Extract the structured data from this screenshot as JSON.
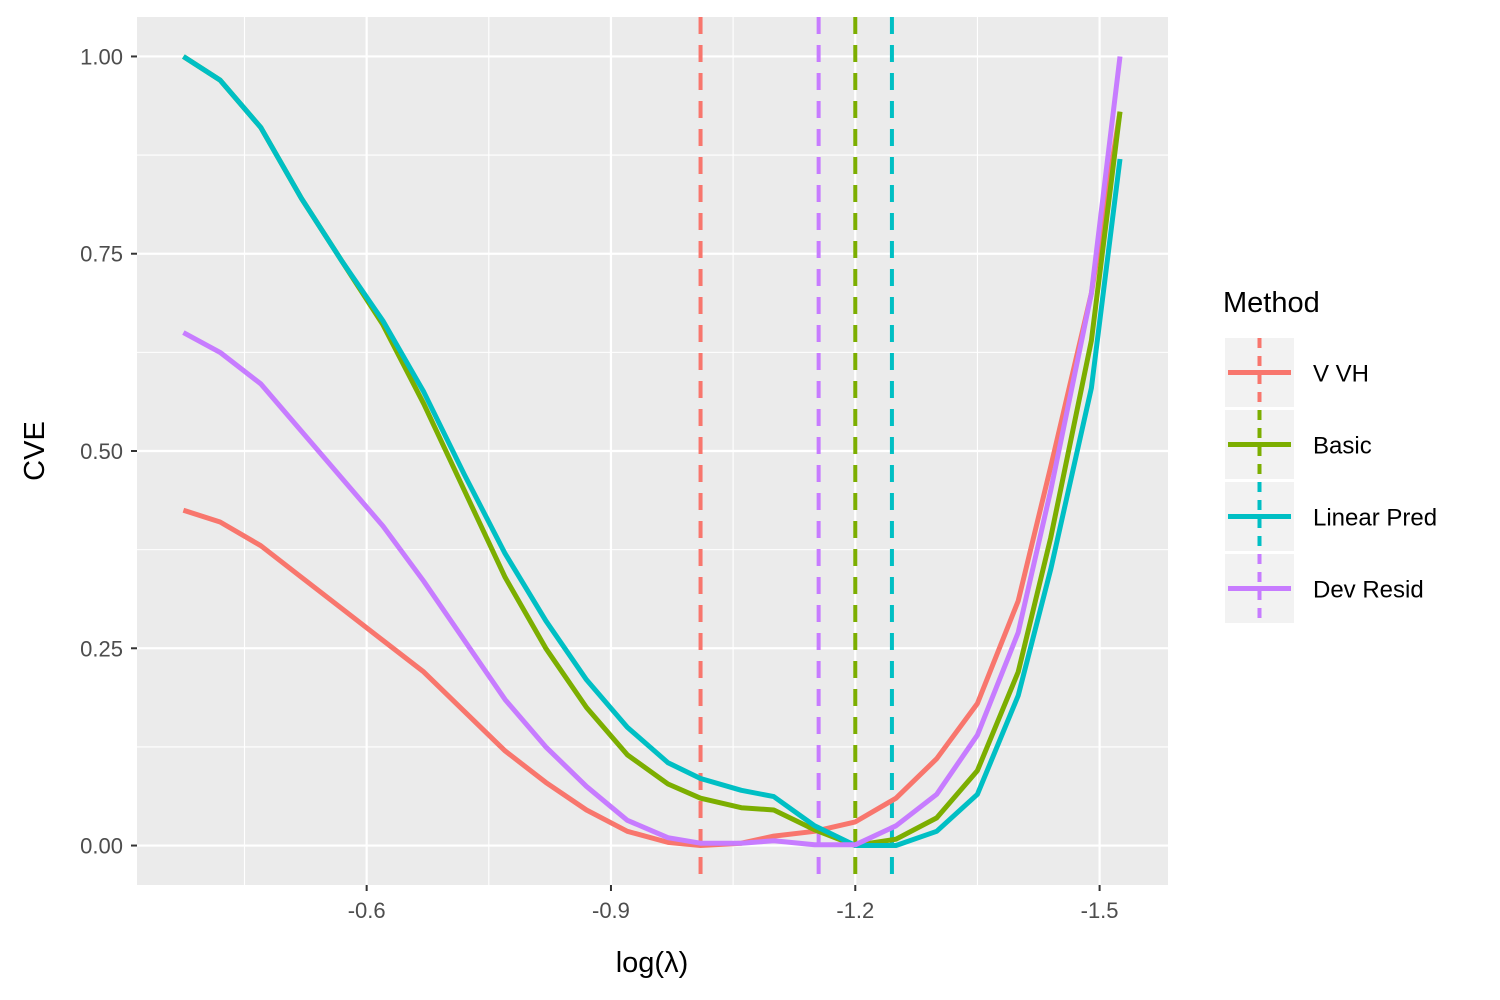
{
  "chart_data": {
    "type": "line",
    "xlabel": "log(λ)",
    "ylabel": "CVE",
    "x_reversed": true,
    "xlim": [
      -0.318,
      -1.584
    ],
    "ylim": [
      -0.05,
      1.05
    ],
    "x_ticks": [
      -0.6,
      -0.9,
      -1.2,
      -1.5
    ],
    "x_tick_labels": [
      "-0.6",
      "-0.9",
      "-1.2",
      "-1.5"
    ],
    "y_ticks": [
      0,
      0.25,
      0.5,
      0.75,
      1
    ],
    "y_tick_labels": [
      "0.00",
      "0.25",
      "0.50",
      "0.75",
      "1.00"
    ],
    "grid": true,
    "legend_title": "Method",
    "legend_position": "right",
    "series": [
      {
        "name": "V VH",
        "color": "#F8766D",
        "vline": -1.01,
        "x": [
          -0.375,
          -0.42,
          -0.47,
          -0.52,
          -0.57,
          -0.62,
          -0.67,
          -0.72,
          -0.77,
          -0.82,
          -0.87,
          -0.92,
          -0.97,
          -1.01,
          -1.06,
          -1.1,
          -1.15,
          -1.2,
          -1.25,
          -1.3,
          -1.35,
          -1.4,
          -1.44,
          -1.49,
          -1.525
        ],
        "values": [
          0.425,
          0.41,
          0.38,
          0.34,
          0.3,
          0.26,
          0.22,
          0.17,
          0.12,
          0.08,
          0.045,
          0.018,
          0.004,
          0.0,
          0.003,
          0.012,
          0.018,
          0.03,
          0.06,
          0.11,
          0.18,
          0.31,
          0.48,
          0.7,
          0.93
        ]
      },
      {
        "name": "Basic",
        "color": "#7CAE00",
        "vline": -1.2,
        "x": [
          -0.375,
          -0.42,
          -0.47,
          -0.52,
          -0.57,
          -0.62,
          -0.67,
          -0.72,
          -0.77,
          -0.82,
          -0.87,
          -0.92,
          -0.97,
          -1.01,
          -1.06,
          -1.1,
          -1.15,
          -1.2,
          -1.25,
          -1.3,
          -1.35,
          -1.4,
          -1.44,
          -1.49,
          -1.525
        ],
        "values": [
          1.0,
          0.97,
          0.91,
          0.82,
          0.74,
          0.66,
          0.56,
          0.45,
          0.34,
          0.25,
          0.175,
          0.115,
          0.078,
          0.06,
          0.048,
          0.045,
          0.02,
          0.0,
          0.008,
          0.035,
          0.095,
          0.22,
          0.39,
          0.64,
          0.93
        ]
      },
      {
        "name": "Linear Pred",
        "color": "#00BFC4",
        "vline": -1.245,
        "x": [
          -0.375,
          -0.42,
          -0.47,
          -0.52,
          -0.57,
          -0.62,
          -0.67,
          -0.72,
          -0.77,
          -0.82,
          -0.87,
          -0.92,
          -0.97,
          -1.01,
          -1.06,
          -1.1,
          -1.15,
          -1.2,
          -1.25,
          -1.3,
          -1.35,
          -1.4,
          -1.44,
          -1.49,
          -1.525
        ],
        "values": [
          1.0,
          0.97,
          0.91,
          0.82,
          0.74,
          0.665,
          0.575,
          0.47,
          0.37,
          0.285,
          0.21,
          0.15,
          0.105,
          0.085,
          0.07,
          0.062,
          0.025,
          0.0,
          0.0,
          0.018,
          0.065,
          0.19,
          0.35,
          0.58,
          0.87
        ]
      },
      {
        "name": "Dev Resid",
        "color": "#C77CFF",
        "vline": -1.155,
        "x": [
          -0.375,
          -0.42,
          -0.47,
          -0.52,
          -0.57,
          -0.62,
          -0.67,
          -0.72,
          -0.77,
          -0.82,
          -0.87,
          -0.92,
          -0.97,
          -1.01,
          -1.06,
          -1.1,
          -1.15,
          -1.2,
          -1.25,
          -1.3,
          -1.35,
          -1.4,
          -1.44,
          -1.49,
          -1.525
        ],
        "values": [
          0.65,
          0.625,
          0.585,
          0.525,
          0.465,
          0.405,
          0.335,
          0.26,
          0.185,
          0.125,
          0.075,
          0.032,
          0.01,
          0.003,
          0.003,
          0.006,
          0.001,
          0.001,
          0.025,
          0.065,
          0.14,
          0.27,
          0.45,
          0.7,
          1.0
        ]
      }
    ]
  }
}
